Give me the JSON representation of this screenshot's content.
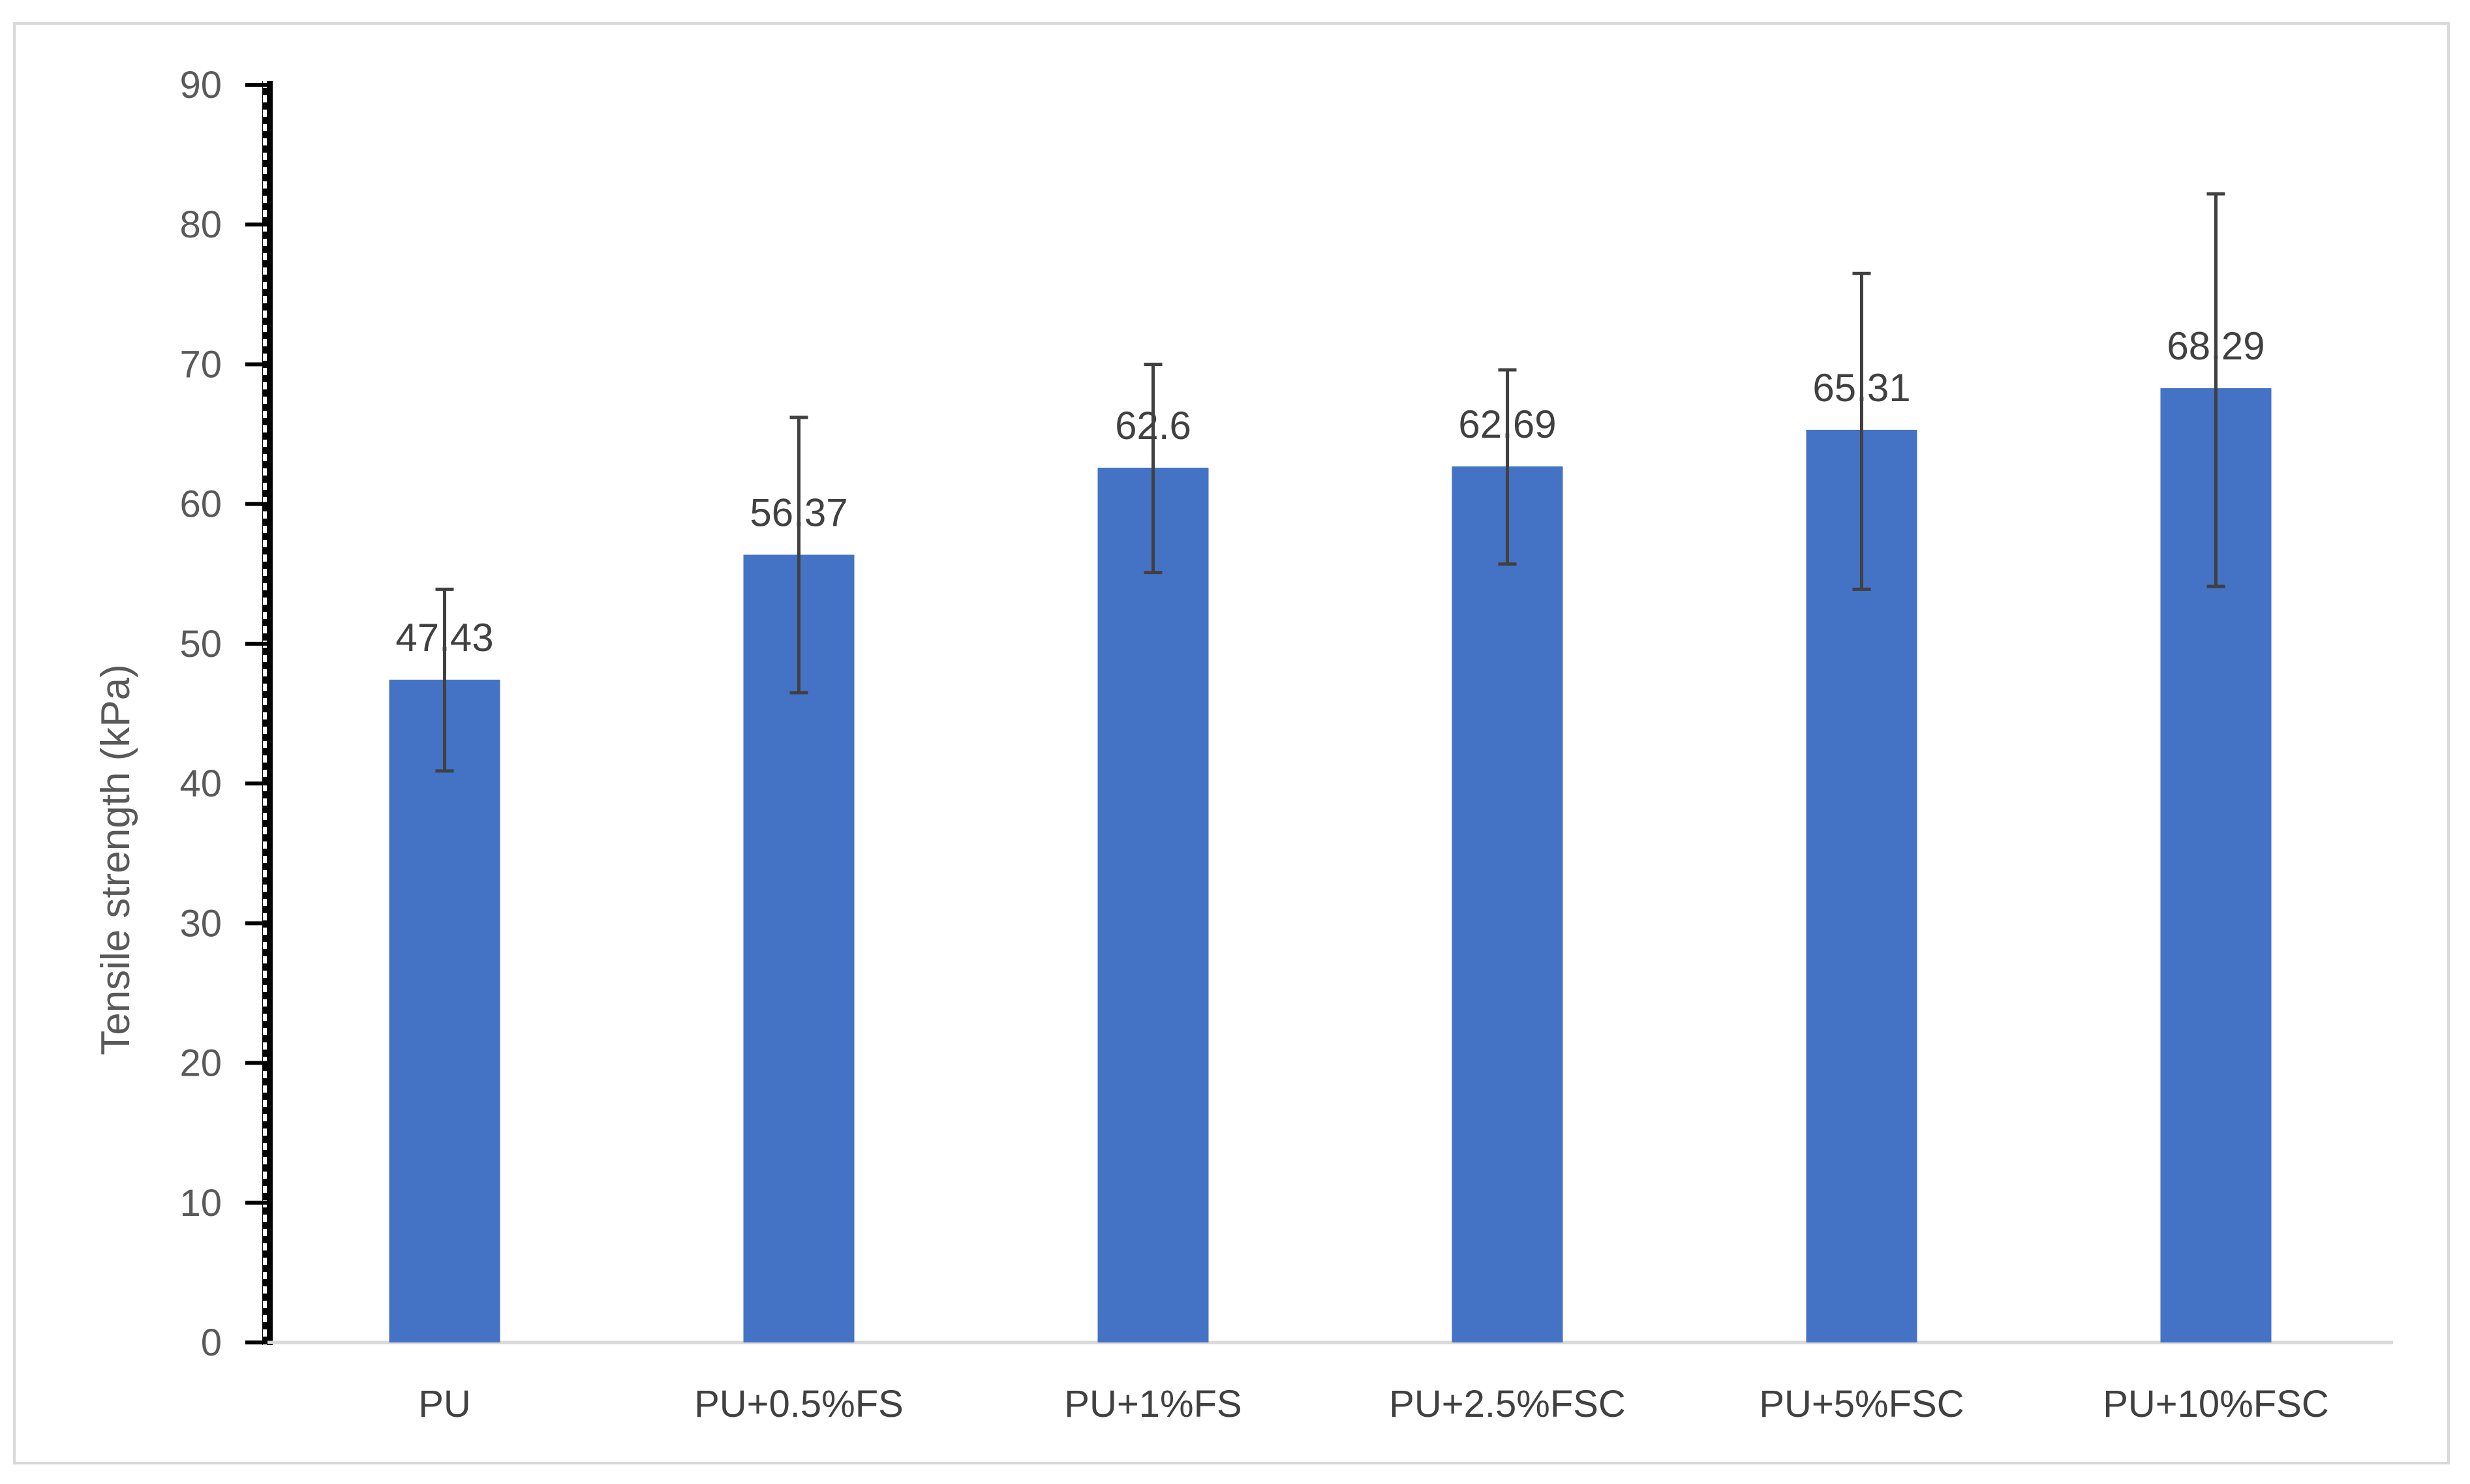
{
  "chart_data": {
    "type": "bar",
    "title": "",
    "xlabel": "",
    "ylabel": "Tensile strength (kPa)",
    "ylim": [
      0,
      90
    ],
    "yticks": [
      0,
      10,
      20,
      30,
      40,
      50,
      60,
      70,
      80,
      90
    ],
    "categories": [
      "PU",
      "PU+0.5%FS",
      "PU+1%FS",
      "PU+2.5%FSC",
      "PU+5%FSC",
      "PU+10%FSC"
    ],
    "values": [
      47.43,
      56.37,
      62.6,
      62.69,
      65.31,
      68.29
    ],
    "data_labels": [
      "47.43",
      "56.37",
      "62.6",
      "62.69",
      "65.31",
      "68.29"
    ],
    "error_low": [
      40.9,
      46.5,
      55.1,
      55.7,
      53.9,
      54.1
    ],
    "error_high": [
      53.9,
      66.2,
      70.0,
      69.6,
      76.5,
      82.2
    ],
    "grid": false,
    "legend": "none",
    "colors": {
      "bar": "#4472c4",
      "error_bar": "#404040",
      "axis": "#000000",
      "baseline": "#d9d9d9",
      "frame": "#d9d9d9"
    }
  }
}
